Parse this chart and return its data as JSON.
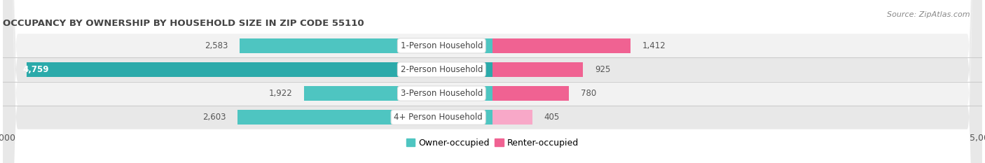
{
  "title": "OCCUPANCY BY OWNERSHIP BY HOUSEHOLD SIZE IN ZIP CODE 55110",
  "source": "Source: ZipAtlas.com",
  "categories": [
    "1-Person Household",
    "2-Person Household",
    "3-Person Household",
    "4+ Person Household"
  ],
  "owner_values": [
    2583,
    4759,
    1922,
    2603
  ],
  "renter_values": [
    1412,
    925,
    780,
    405
  ],
  "owner_color": "#4ec5c1",
  "renter_color_1": "#f06292",
  "renter_color_2": "#f06292",
  "renter_color_3": "#f06292",
  "renter_color_4": "#f8a8c8",
  "row_bg_even": "#f2f2f2",
  "row_bg_odd": "#e8e8e8",
  "owner_color_2": "#2baaaa",
  "axis_limit": 5000,
  "label_color_dark": "#555555",
  "label_color_white": "#ffffff",
  "title_fontsize": 9.5,
  "source_fontsize": 8,
  "tick_fontsize": 9,
  "bar_label_fontsize": 8.5,
  "category_fontsize": 8.5,
  "legend_fontsize": 9
}
